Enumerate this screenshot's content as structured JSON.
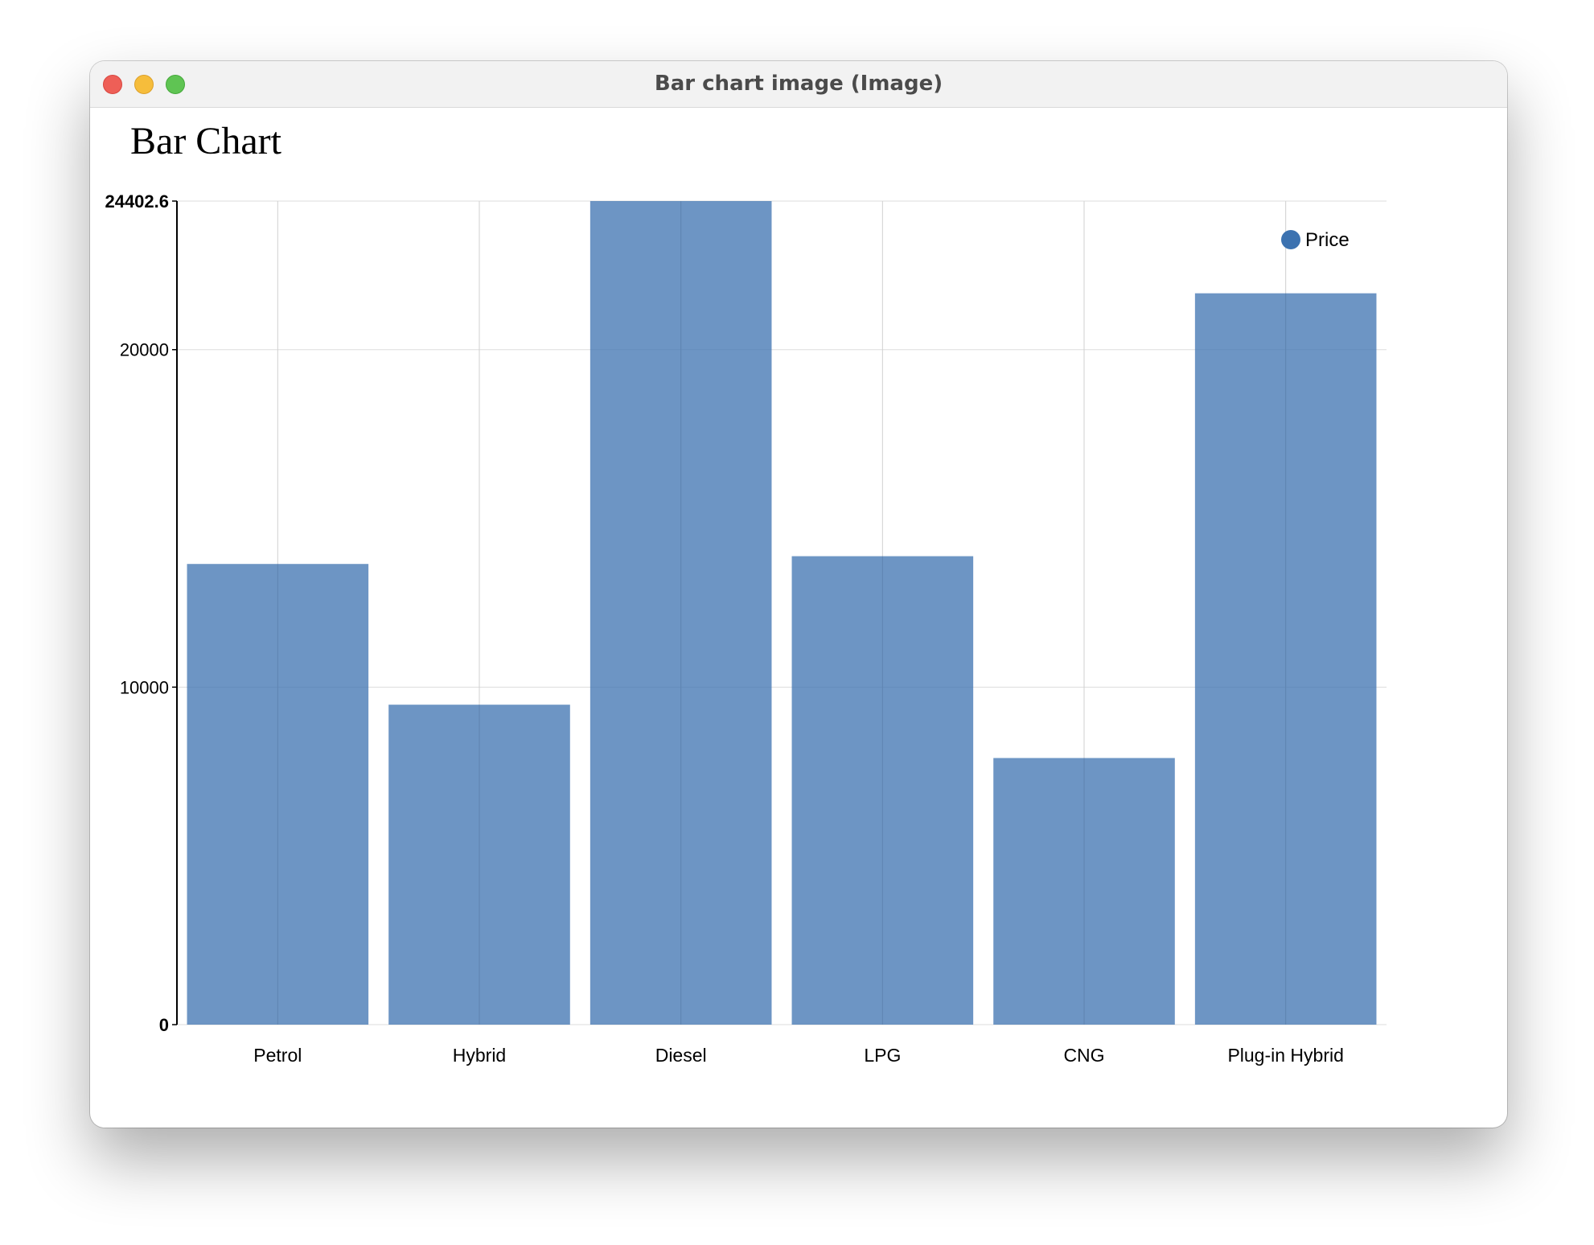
{
  "window": {
    "title": "Bar chart image (Image)"
  },
  "colors": {
    "bar": "#3c72b0",
    "legend_dot": "#3c72b0",
    "grid": "#dddddd",
    "axis": "#000000"
  },
  "chart_data": {
    "type": "bar",
    "title": "Bar Chart",
    "xlabel": "",
    "ylabel": "",
    "categories": [
      "Petrol",
      "Hybrid",
      "Diesel",
      "LPG",
      "CNG",
      "Plug-in Hybrid"
    ],
    "series": [
      {
        "name": "Price",
        "values": [
          13650,
          9480,
          24402.6,
          13880,
          7900,
          21670
        ]
      }
    ],
    "ylim": [
      0,
      24402.6
    ],
    "y_ticks": [
      "0",
      "10000",
      "20000",
      "24402.6"
    ],
    "grid": true,
    "legend_position": "top-right"
  }
}
